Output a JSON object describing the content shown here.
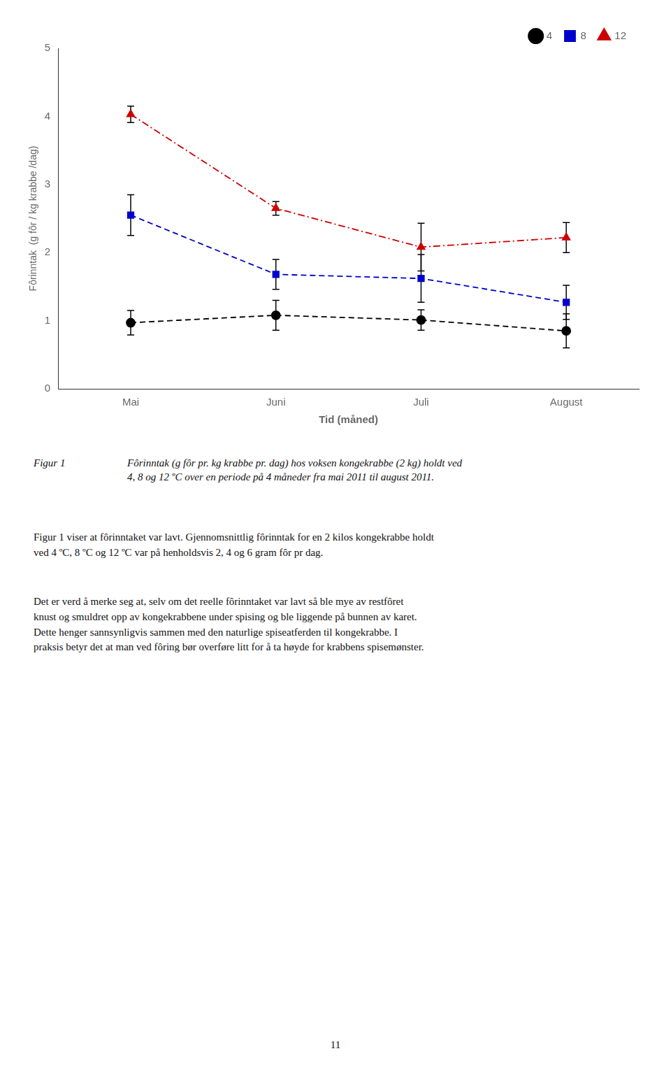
{
  "chart_data": {
    "type": "line",
    "categories": [
      "Mai",
      "Juni",
      "Juli",
      "August"
    ],
    "series": [
      {
        "name": "4",
        "color": "black",
        "values": [
          0.97,
          1.08,
          1.01,
          0.85
        ],
        "errors": [
          0.18,
          0.22,
          0.15,
          0.25
        ],
        "marker": "circle",
        "line_style": "dashed"
      },
      {
        "name": "8",
        "color": "#0000CC",
        "values": [
          2.55,
          1.68,
          1.62,
          1.27
        ],
        "errors": [
          0.3,
          0.22,
          0.35,
          0.25
        ],
        "marker": "square",
        "line_style": "dashed"
      },
      {
        "name": "12",
        "color": "#CC0000",
        "values": [
          4.03,
          2.65,
          2.08,
          2.22
        ],
        "errors": [
          0.12,
          0.1,
          0.35,
          0.22
        ],
        "marker": "triangle",
        "line_style": "dashdot"
      }
    ],
    "xlabel": "Tid (måned)",
    "ylabel": "Fôrinntak  (g fôr / kg krabbe /dag)",
    "ylim": [
      0,
      5
    ],
    "yticks": [
      0,
      1,
      2,
      3,
      4,
      5
    ],
    "grid": false,
    "legend": "upper right",
    "annotations": [
      "Figur 1",
      "Fôrinntak (g fôr pr. kg krabbe pr. dag) hos voksen kongekrabbe (2 kg) holdt ved\n4, 8 og 12 ºC over en periode på 4 måneder fra mai 2011 til august 2011.",
      "Figur 1 viser at fôrinntaket var lavt. Gjennomsnittlig fôrinntak for en 2 kilos kongekrabbe holdt\nved 4 ºC, 8 ºC og 12 ºC var på henholdsvis 2, 4 og 6 gram fôr pr dag.",
      "Det er verd å merke seg at, selv om det reelle fôrinntaket var lavt så ble mye av restfôret\nknust og smuldret opp av kongekrabbene under spising og ble liggende på bunnen av karet.\nDette henger sannsynligvis sammen med den naturlige spiseatferden til kongekrabbe. I\npraksis betyr det at man ved fôring bør overføre litt for å ta høyde for krabbens spisemønster.",
      "11"
    ]
  }
}
